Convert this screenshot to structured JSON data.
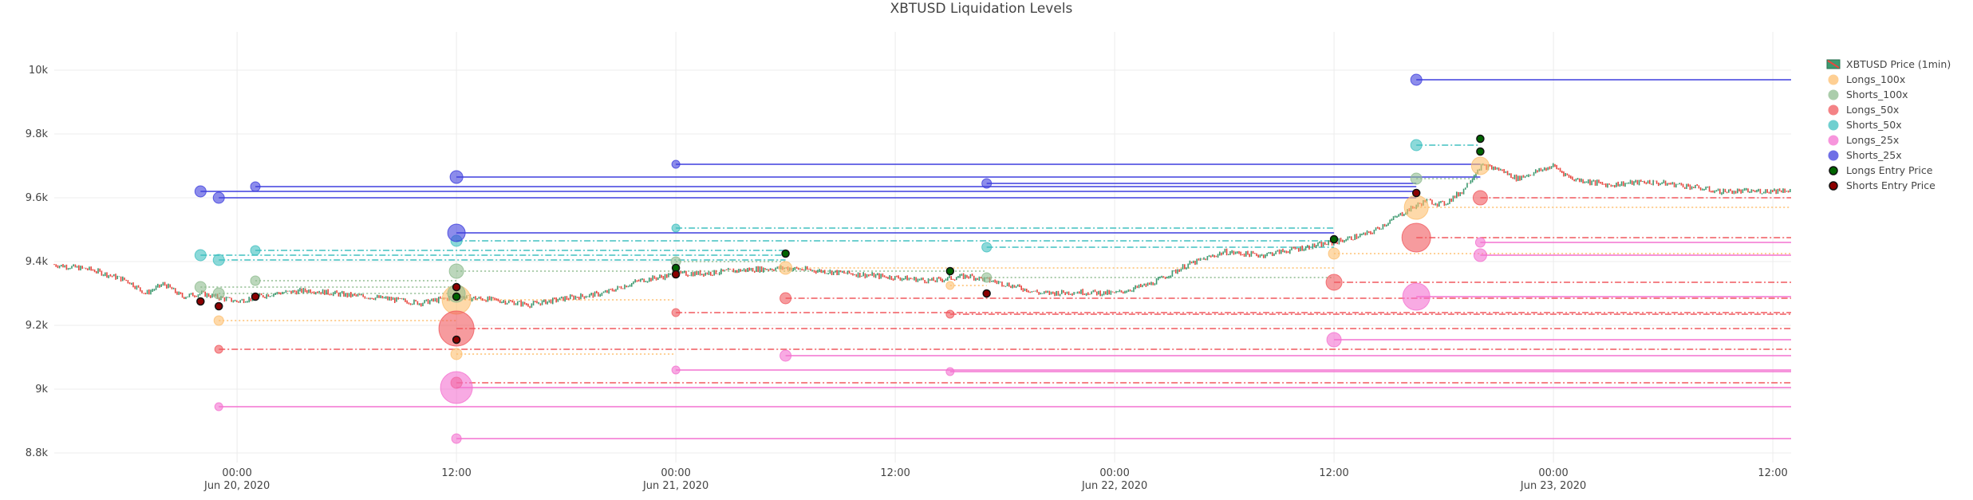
{
  "chart_data": {
    "type": "scatter",
    "title": "XBTUSD Liquidation Levels",
    "xlabel": "",
    "ylabel": "",
    "x_range": [
      "2020-06-19T14:00",
      "2020-06-23T13:00"
    ],
    "ylim": [
      8770,
      10120
    ],
    "yticks": [
      8800,
      9000,
      9200,
      9400,
      9600,
      9800,
      10000
    ],
    "ytick_labels": [
      "8.8k",
      "9k",
      "9.2k",
      "9.4k",
      "9.6k",
      "9.8k",
      "10k"
    ],
    "xticks": [
      {
        "t": "2020-06-20T00:00",
        "label": "00:00",
        "sub": "Jun 20, 2020"
      },
      {
        "t": "2020-06-20T12:00",
        "label": "12:00",
        "sub": ""
      },
      {
        "t": "2020-06-21T00:00",
        "label": "00:00",
        "sub": "Jun 21, 2020"
      },
      {
        "t": "2020-06-21T12:00",
        "label": "12:00",
        "sub": ""
      },
      {
        "t": "2020-06-22T00:00",
        "label": "00:00",
        "sub": "Jun 22, 2020"
      },
      {
        "t": "2020-06-22T12:00",
        "label": "12:00",
        "sub": ""
      },
      {
        "t": "2020-06-23T00:00",
        "label": "00:00",
        "sub": "Jun 23, 2020"
      },
      {
        "t": "2020-06-23T12:00",
        "label": "12:00",
        "sub": ""
      }
    ],
    "grid": true,
    "legend_position": "right",
    "series_styles": {
      "Longs_100x": {
        "color": "#fdbf6f",
        "dash": "2,3"
      },
      "Shorts_100x": {
        "color": "#8fbc8f",
        "dash": "2,3"
      },
      "Longs_50x": {
        "color": "#f0595e",
        "dash": "8,3,2,3"
      },
      "Shorts_50x": {
        "color": "#40c0c0",
        "dash": "8,3,2,3"
      },
      "Longs_25x": {
        "color": "#f472d0",
        "dash": ""
      },
      "Shorts_25x": {
        "color": "#3f3fdd",
        "dash": ""
      }
    },
    "price_series": {
      "name": "XBTUSD Price (1min)",
      "increasing_color": "#3d9970",
      "decreasing_color": "#e8473f",
      "points": [
        [
          "2020-06-19T14:00",
          9390
        ],
        [
          "2020-06-19T16:00",
          9375
        ],
        [
          "2020-06-19T18:00",
          9340
        ],
        [
          "2020-06-19T19:00",
          9300
        ],
        [
          "2020-06-19T20:00",
          9330
        ],
        [
          "2020-06-19T21:00",
          9290
        ],
        [
          "2020-06-19T22:00",
          9300
        ],
        [
          "2020-06-20T00:00",
          9275
        ],
        [
          "2020-06-20T02:00",
          9300
        ],
        [
          "2020-06-20T04:00",
          9310
        ],
        [
          "2020-06-20T06:00",
          9295
        ],
        [
          "2020-06-20T08:00",
          9285
        ],
        [
          "2020-06-20T10:00",
          9270
        ],
        [
          "2020-06-20T12:00",
          9290
        ],
        [
          "2020-06-20T14:00",
          9280
        ],
        [
          "2020-06-20T16:00",
          9265
        ],
        [
          "2020-06-20T18:00",
          9285
        ],
        [
          "2020-06-20T20:00",
          9300
        ],
        [
          "2020-06-20T22:00",
          9340
        ],
        [
          "2020-06-21T00:00",
          9360
        ],
        [
          "2020-06-21T02:00",
          9365
        ],
        [
          "2020-06-21T04:00",
          9375
        ],
        [
          "2020-06-21T06:00",
          9380
        ],
        [
          "2020-06-21T08:00",
          9370
        ],
        [
          "2020-06-21T10:00",
          9360
        ],
        [
          "2020-06-21T12:00",
          9350
        ],
        [
          "2020-06-21T14:00",
          9340
        ],
        [
          "2020-06-21T16:00",
          9355
        ],
        [
          "2020-06-21T18:00",
          9330
        ],
        [
          "2020-06-21T20:00",
          9300
        ],
        [
          "2020-06-21T22:00",
          9305
        ],
        [
          "2020-06-22T00:00",
          9300
        ],
        [
          "2020-06-22T02:00",
          9330
        ],
        [
          "2020-06-22T04:00",
          9390
        ],
        [
          "2020-06-22T06:00",
          9430
        ],
        [
          "2020-06-22T08:00",
          9420
        ],
        [
          "2020-06-22T10:00",
          9440
        ],
        [
          "2020-06-22T12:00",
          9460
        ],
        [
          "2020-06-22T14:00",
          9490
        ],
        [
          "2020-06-22T16:00",
          9560
        ],
        [
          "2020-06-22T17:00",
          9590
        ],
        [
          "2020-06-22T18:00",
          9580
        ],
        [
          "2020-06-22T19:00",
          9620
        ],
        [
          "2020-06-22T20:00",
          9700
        ],
        [
          "2020-06-22T21:00",
          9690
        ],
        [
          "2020-06-22T22:00",
          9660
        ],
        [
          "2020-06-23T00:00",
          9700
        ],
        [
          "2020-06-23T01:00",
          9660
        ],
        [
          "2020-06-23T03:00",
          9640
        ],
        [
          "2020-06-23T05:00",
          9650
        ],
        [
          "2020-06-23T07:00",
          9640
        ],
        [
          "2020-06-23T09:00",
          9620
        ],
        [
          "2020-06-23T11:00",
          9620
        ],
        [
          "2020-06-23T13:00",
          9625
        ]
      ]
    },
    "levels": [
      {
        "series": "Longs_100x",
        "x0": "2020-06-20T12:00",
        "y": 9280,
        "size": 36,
        "end": "2020-06-21T00:00"
      },
      {
        "series": "Longs_100x",
        "x0": "2020-06-20T12:00",
        "y": 9110,
        "size": 14,
        "end": "2020-06-21T00:00"
      },
      {
        "series": "Longs_100x",
        "x0": "2020-06-19T23:00",
        "y": 9215,
        "size": 12,
        "end": "2020-06-20T12:00"
      },
      {
        "series": "Longs_100x",
        "x0": "2020-06-21T06:00",
        "y": 9380,
        "size": 16,
        "end": "2020-06-22T12:00"
      },
      {
        "series": "Longs_100x",
        "x0": "2020-06-21T15:00",
        "y": 9325,
        "size": 10,
        "end": "2020-06-21T17:00"
      },
      {
        "series": "Longs_100x",
        "x0": "2020-06-22T12:00",
        "y": 9425,
        "size": 14,
        "end": "2020-06-23T13:00"
      },
      {
        "series": "Longs_100x",
        "x0": "2020-06-22T16:30",
        "y": 9570,
        "size": 30,
        "end": "2020-06-23T13:00"
      },
      {
        "series": "Longs_100x",
        "x0": "2020-06-22T20:00",
        "y": 9700,
        "size": 22,
        "end": "2020-06-22T20:00"
      },
      {
        "series": "Shorts_100x",
        "x0": "2020-06-19T22:00",
        "y": 9320,
        "size": 14,
        "end": "2020-06-20T12:00"
      },
      {
        "series": "Shorts_100x",
        "x0": "2020-06-19T23:00",
        "y": 9300,
        "size": 14,
        "end": "2020-06-20T12:00"
      },
      {
        "series": "Shorts_100x",
        "x0": "2020-06-20T01:00",
        "y": 9340,
        "size": 12,
        "end": "2020-06-20T12:00"
      },
      {
        "series": "Shorts_100x",
        "x0": "2020-06-20T12:00",
        "y": 9370,
        "size": 18,
        "end": "2020-06-21T17:00"
      },
      {
        "series": "Shorts_100x",
        "x0": "2020-06-20T12:00",
        "y": 9300,
        "size": 22,
        "end": "2020-06-20T12:00"
      },
      {
        "series": "Shorts_100x",
        "x0": "2020-06-21T00:00",
        "y": 9400,
        "size": 12,
        "end": "2020-06-21T06:00"
      },
      {
        "series": "Shorts_100x",
        "x0": "2020-06-21T17:00",
        "y": 9350,
        "size": 12,
        "end": "2020-06-22T12:00"
      },
      {
        "series": "Shorts_100x",
        "x0": "2020-06-22T16:30",
        "y": 9660,
        "size": 14,
        "end": "2020-06-22T20:00"
      },
      {
        "series": "Longs_50x",
        "x0": "2020-06-20T12:00",
        "y": 9190,
        "size": 44,
        "end": "2020-06-23T13:00"
      },
      {
        "series": "Longs_50x",
        "x0": "2020-06-20T12:00",
        "y": 9020,
        "size": 14,
        "end": "2020-06-23T13:00"
      },
      {
        "series": "Longs_50x",
        "x0": "2020-06-19T23:00",
        "y": 9125,
        "size": 10,
        "end": "2020-06-23T13:00"
      },
      {
        "series": "Longs_50x",
        "x0": "2020-06-21T00:00",
        "y": 9240,
        "size": 10,
        "end": "2020-06-23T13:00"
      },
      {
        "series": "Longs_50x",
        "x0": "2020-06-21T06:00",
        "y": 9285,
        "size": 14,
        "end": "2020-06-23T13:00"
      },
      {
        "series": "Longs_50x",
        "x0": "2020-06-21T15:00",
        "y": 9235,
        "size": 10,
        "end": "2020-06-23T13:00"
      },
      {
        "series": "Longs_50x",
        "x0": "2020-06-22T12:00",
        "y": 9335,
        "size": 20,
        "end": "2020-06-23T13:00"
      },
      {
        "series": "Longs_50x",
        "x0": "2020-06-22T16:30",
        "y": 9475,
        "size": 36,
        "end": "2020-06-23T13:00"
      },
      {
        "series": "Longs_50x",
        "x0": "2020-06-22T20:00",
        "y": 9600,
        "size": 18,
        "end": "2020-06-23T13:00"
      },
      {
        "series": "Shorts_50x",
        "x0": "2020-06-19T22:00",
        "y": 9420,
        "size": 14,
        "end": "2020-06-21T06:00"
      },
      {
        "series": "Shorts_50x",
        "x0": "2020-06-19T23:00",
        "y": 9405,
        "size": 14,
        "end": "2020-06-21T06:00"
      },
      {
        "series": "Shorts_50x",
        "x0": "2020-06-20T01:00",
        "y": 9435,
        "size": 12,
        "end": "2020-06-21T06:00"
      },
      {
        "series": "Shorts_50x",
        "x0": "2020-06-20T12:00",
        "y": 9465,
        "size": 14,
        "end": "2020-06-22T12:00"
      },
      {
        "series": "Shorts_50x",
        "x0": "2020-06-21T00:00",
        "y": 9505,
        "size": 10,
        "end": "2020-06-22T12:00"
      },
      {
        "series": "Shorts_50x",
        "x0": "2020-06-21T17:00",
        "y": 9445,
        "size": 12,
        "end": "2020-06-22T12:00"
      },
      {
        "series": "Shorts_50x",
        "x0": "2020-06-22T16:30",
        "y": 9765,
        "size": 14,
        "end": "2020-06-22T20:00"
      },
      {
        "series": "Longs_25x",
        "x0": "2020-06-20T12:00",
        "y": 9005,
        "size": 40,
        "end": "2020-06-23T13:00"
      },
      {
        "series": "Longs_25x",
        "x0": "2020-06-20T12:00",
        "y": 8845,
        "size": 12,
        "end": "2020-06-23T13:00"
      },
      {
        "series": "Longs_25x",
        "x0": "2020-06-19T23:00",
        "y": 8945,
        "size": 10,
        "end": "2020-06-23T13:00"
      },
      {
        "series": "Longs_25x",
        "x0": "2020-06-21T00:00",
        "y": 9060,
        "size": 10,
        "end": "2020-06-23T13:00"
      },
      {
        "series": "Longs_25x",
        "x0": "2020-06-21T06:00",
        "y": 9105,
        "size": 14,
        "end": "2020-06-23T13:00"
      },
      {
        "series": "Longs_25x",
        "x0": "2020-06-21T15:00",
        "y": 9055,
        "size": 10,
        "end": "2020-06-23T13:00"
      },
      {
        "series": "Longs_25x",
        "x0": "2020-06-22T12:00",
        "y": 9155,
        "size": 18,
        "end": "2020-06-23T13:00"
      },
      {
        "series": "Longs_25x",
        "x0": "2020-06-22T16:30",
        "y": 9290,
        "size": 34,
        "end": "2020-06-23T13:00"
      },
      {
        "series": "Longs_25x",
        "x0": "2020-06-22T20:00",
        "y": 9420,
        "size": 16,
        "end": "2020-06-23T13:00"
      },
      {
        "series": "Longs_25x",
        "x0": "2020-06-22T20:00",
        "y": 9460,
        "size": 12,
        "end": "2020-06-23T13:00"
      },
      {
        "series": "Shorts_25x",
        "x0": "2020-06-19T22:00",
        "y": 9620,
        "size": 14,
        "end": "2020-06-22T16:30"
      },
      {
        "series": "Shorts_25x",
        "x0": "2020-06-19T23:00",
        "y": 9600,
        "size": 14,
        "end": "2020-06-22T16:30"
      },
      {
        "series": "Shorts_25x",
        "x0": "2020-06-20T01:00",
        "y": 9635,
        "size": 12,
        "end": "2020-06-22T16:30"
      },
      {
        "series": "Shorts_25x",
        "x0": "2020-06-20T12:00",
        "y": 9665,
        "size": 16,
        "end": "2020-06-22T20:00"
      },
      {
        "series": "Shorts_25x",
        "x0": "2020-06-20T12:00",
        "y": 9490,
        "size": 22,
        "end": "2020-06-22T12:00"
      },
      {
        "series": "Shorts_25x",
        "x0": "2020-06-21T00:00",
        "y": 9705,
        "size": 10,
        "end": "2020-06-22T20:00"
      },
      {
        "series": "Shorts_25x",
        "x0": "2020-06-21T17:00",
        "y": 9645,
        "size": 12,
        "end": "2020-06-22T16:30"
      },
      {
        "series": "Shorts_25x",
        "x0": "2020-06-22T16:30",
        "y": 9970,
        "size": 14,
        "end": "2020-06-23T13:00"
      }
    ],
    "entries": [
      {
        "series": "Longs Entry Price",
        "x": "2020-06-20T12:00",
        "y": 9290
      },
      {
        "series": "Longs Entry Price",
        "x": "2020-06-21T00:00",
        "y": 9380
      },
      {
        "series": "Longs Entry Price",
        "x": "2020-06-21T06:00",
        "y": 9425
      },
      {
        "series": "Longs Entry Price",
        "x": "2020-06-21T15:00",
        "y": 9370
      },
      {
        "series": "Longs Entry Price",
        "x": "2020-06-22T12:00",
        "y": 9470
      },
      {
        "series": "Longs Entry Price",
        "x": "2020-06-22T20:00",
        "y": 9745
      },
      {
        "series": "Longs Entry Price",
        "x": "2020-06-22T20:00",
        "y": 9785
      },
      {
        "series": "Shorts Entry Price",
        "x": "2020-06-19T22:00",
        "y": 9275
      },
      {
        "series": "Shorts Entry Price",
        "x": "2020-06-19T23:00",
        "y": 9260
      },
      {
        "series": "Shorts Entry Price",
        "x": "2020-06-20T01:00",
        "y": 9290
      },
      {
        "series": "Shorts Entry Price",
        "x": "2020-06-20T12:00",
        "y": 9320
      },
      {
        "series": "Shorts Entry Price",
        "x": "2020-06-20T12:00",
        "y": 9155
      },
      {
        "series": "Shorts Entry Price",
        "x": "2020-06-21T00:00",
        "y": 9360
      },
      {
        "series": "Shorts Entry Price",
        "x": "2020-06-21T17:00",
        "y": 9300
      },
      {
        "series": "Shorts Entry Price",
        "x": "2020-06-22T16:30",
        "y": 9615
      }
    ],
    "entry_styles": {
      "Longs Entry Price": {
        "fill": "#006400",
        "stroke": "#111111"
      },
      "Shorts Entry Price": {
        "fill": "#8b0000",
        "stroke": "#111111"
      }
    },
    "legend": [
      {
        "name": "XBTUSD Price (1min)",
        "kind": "candle"
      },
      {
        "name": "Longs_100x",
        "kind": "marker",
        "color": "#fdbf6f"
      },
      {
        "name": "Shorts_100x",
        "kind": "marker",
        "color": "#8fbc8f"
      },
      {
        "name": "Longs_50x",
        "kind": "marker",
        "color": "#f0595e"
      },
      {
        "name": "Shorts_50x",
        "kind": "marker",
        "color": "#40c0c0"
      },
      {
        "name": "Longs_25x",
        "kind": "marker",
        "color": "#f472d0"
      },
      {
        "name": "Shorts_25x",
        "kind": "marker",
        "color": "#3f3fdd"
      },
      {
        "name": "Longs Entry Price",
        "kind": "entry",
        "color": "#006400"
      },
      {
        "name": "Shorts Entry Price",
        "kind": "entry",
        "color": "#8b0000"
      }
    ]
  }
}
